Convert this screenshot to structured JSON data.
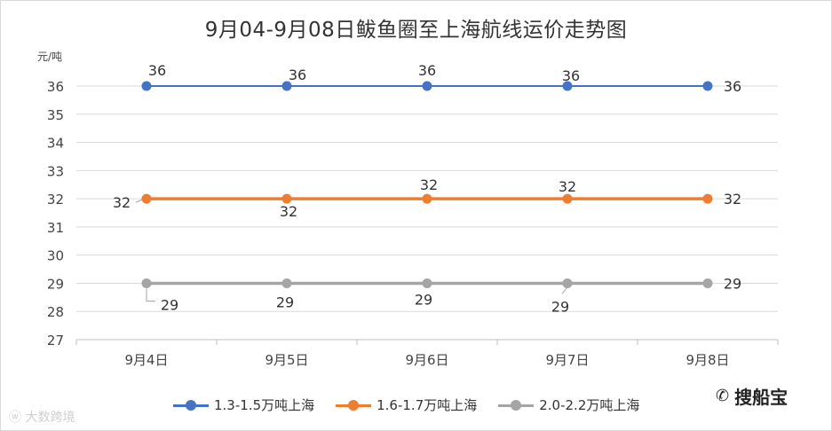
{
  "chart_data": {
    "type": "line",
    "title": "9月04-9月08日鲅鱼圈至上海航线运价走势图",
    "ylabel": "元/吨",
    "categories": [
      "9月4日",
      "9月5日",
      "9月6日",
      "9月7日",
      "9月8日"
    ],
    "ylim": [
      27,
      36
    ],
    "yticks": [
      27,
      28,
      29,
      30,
      31,
      32,
      33,
      34,
      35,
      36
    ],
    "grid": true,
    "legend_position": "bottom",
    "series": [
      {
        "name": "1.3-1.5万吨上海",
        "color": "#4472C4",
        "values": [
          36,
          36,
          36,
          36,
          36
        ]
      },
      {
        "name": "1.6-1.7万吨上海",
        "color": "#ED7D31",
        "values": [
          32,
          32,
          32,
          32,
          32
        ]
      },
      {
        "name": "2.0-2.2万吨上海",
        "color": "#A5A5A5",
        "values": [
          29,
          29,
          29,
          29,
          29
        ]
      }
    ]
  },
  "watermarks": {
    "left": "大数跨境",
    "left_icon": "weibo-icon",
    "right": "搜船宝",
    "right_icon": "wechat-icon"
  }
}
